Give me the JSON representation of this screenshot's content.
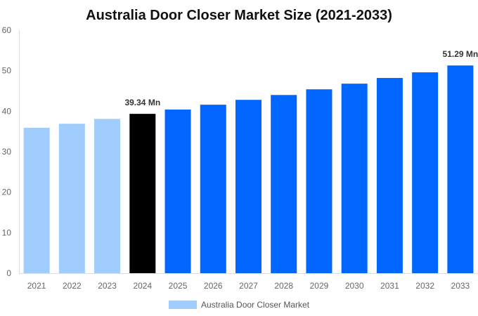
{
  "chart_data": {
    "type": "bar",
    "title": "Australia Door Closer Market Size (2021-2033)",
    "xlabel": "",
    "ylabel": "",
    "ylim": [
      0,
      60
    ],
    "yticks": [
      0,
      10,
      20,
      30,
      40,
      50,
      60
    ],
    "categories": [
      "2021",
      "2022",
      "2023",
      "2024",
      "2025",
      "2026",
      "2027",
      "2028",
      "2029",
      "2030",
      "2031",
      "2032",
      "2033"
    ],
    "series": [
      {
        "name": "Australia Door Closer Market",
        "values": [
          35.9,
          36.9,
          38.1,
          39.34,
          40.4,
          41.6,
          42.8,
          44.0,
          45.4,
          46.8,
          48.2,
          49.6,
          51.29
        ]
      }
    ],
    "bar_colors": [
      "#a0cdfd",
      "#a0cdfd",
      "#a0cdfd",
      "#000000",
      "#0066ff",
      "#0066ff",
      "#0066ff",
      "#0066ff",
      "#0066ff",
      "#0066ff",
      "#0066ff",
      "#0066ff",
      "#0066ff"
    ],
    "data_labels": [
      {
        "index": 3,
        "text": "39.34 Mn"
      },
      {
        "index": 12,
        "text": "51.29 Mn"
      }
    ],
    "legend": {
      "position": "bottom",
      "color": "#a0cdfd"
    },
    "grid": false
  }
}
